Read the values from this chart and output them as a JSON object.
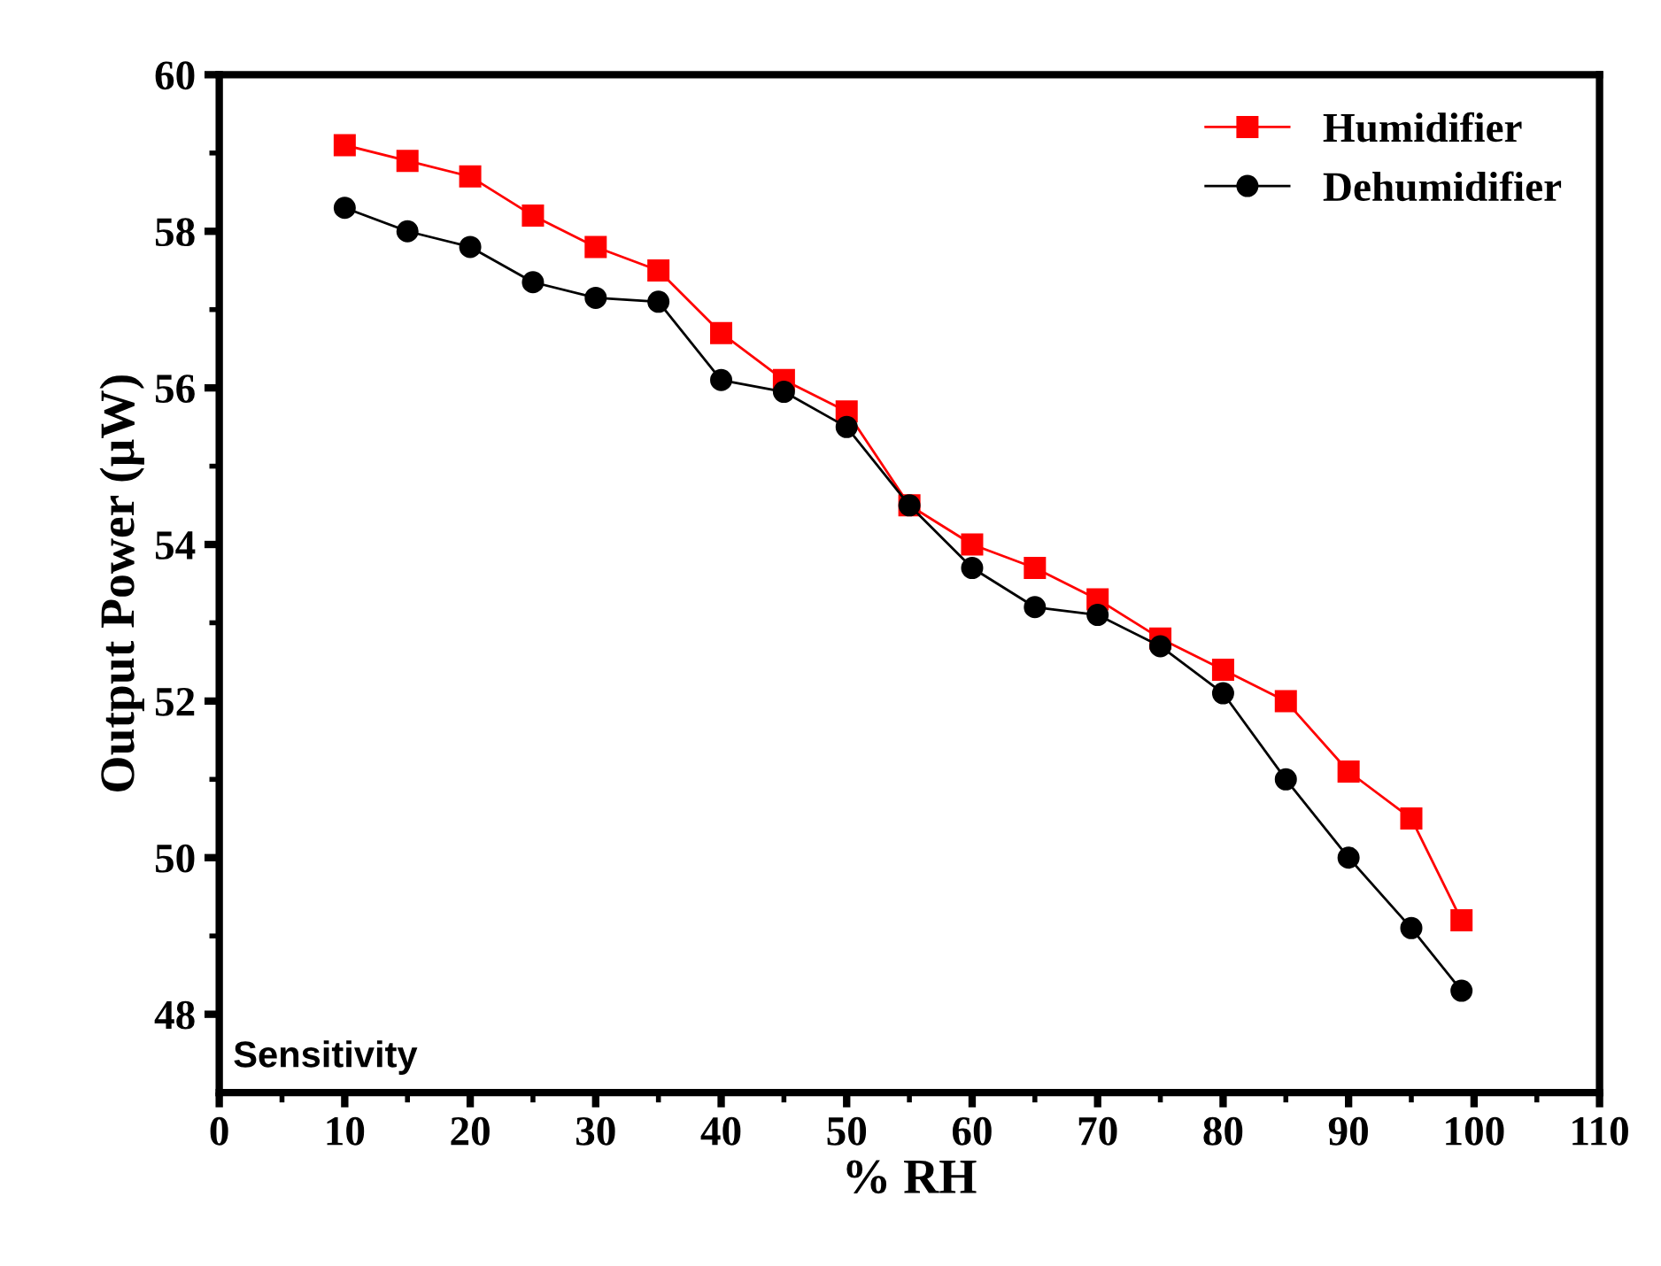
{
  "chart_data": {
    "type": "line",
    "xlabel": "% RH",
    "ylabel": "Output Power (μW)",
    "x": [
      10,
      15,
      20,
      25,
      30,
      35,
      40,
      45,
      50,
      55,
      60,
      65,
      70,
      75,
      80,
      85,
      90,
      95,
      99
    ],
    "series": [
      {
        "name": "Humidifier",
        "color": "#ff0000",
        "marker": "square",
        "values": [
          59.1,
          58.9,
          58.7,
          58.2,
          57.8,
          57.5,
          56.7,
          56.1,
          55.7,
          54.5,
          54.0,
          53.7,
          53.3,
          52.8,
          52.4,
          52.0,
          51.1,
          50.5,
          49.2
        ]
      },
      {
        "name": "Dehumidifier",
        "color": "#000000",
        "marker": "circle",
        "values": [
          58.3,
          58.0,
          57.8,
          57.35,
          57.15,
          57.1,
          56.1,
          55.95,
          55.5,
          54.5,
          53.7,
          53.2,
          53.1,
          52.7,
          52.1,
          51.0,
          50.0,
          49.1,
          48.3
        ]
      }
    ],
    "xlim": [
      0,
      110
    ],
    "xticks": [
      0,
      10,
      20,
      30,
      40,
      50,
      60,
      70,
      80,
      90,
      100,
      110
    ],
    "ylim": [
      47,
      60
    ],
    "yticks": [
      48,
      50,
      52,
      54,
      56,
      58,
      60
    ],
    "grid": false,
    "legend": "top right",
    "line_style": "solid",
    "annotations": [
      "Sensitivity"
    ]
  }
}
